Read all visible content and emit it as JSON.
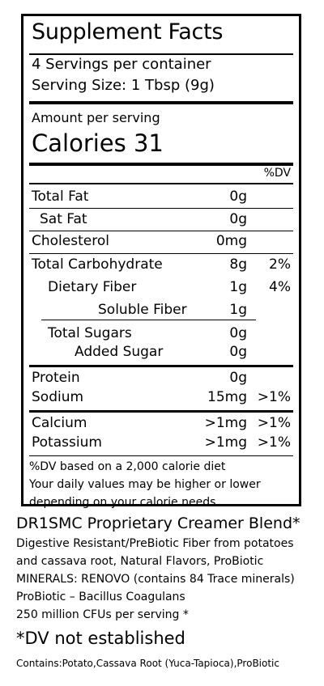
{
  "title": "Supplement Facts",
  "servings_per_container": "4 Servings per container",
  "serving_size": "Serving Size:  1 Tbsp (9g)",
  "amount_per_serving": "Amount per serving",
  "calories": "Calories  31",
  "dv_header": "%DV",
  "nutrients": [
    {
      "label": "Total Fat",
      "value": "0g",
      "dv": ""
    },
    {
      "label": "Sat Fat",
      "value": "0g",
      "dv": ""
    },
    {
      "label": "Cholesterol",
      "value": "0mg",
      "dv": ""
    },
    {
      "label": "Total Carbohydrate",
      "value": "8g",
      "dv": "2%"
    },
    {
      "label": "Dietary Fiber",
      "value": "1g",
      "dv": "4%"
    },
    {
      "label": "Soluble Fiber",
      "value": "1g",
      "dv": ""
    },
    {
      "label": "Total Sugars",
      "value": "0g",
      "dv": ""
    },
    {
      "label": "Added Sugar",
      "value": "0g",
      "dv": ""
    },
    {
      "label": "Protein",
      "value": "0g",
      "dv": ""
    },
    {
      "label": "Sodium",
      "value": "15mg",
      "dv": ">1%"
    },
    {
      "label": "Calcium",
      "value": ">1mg",
      "dv": ">1%"
    },
    {
      "label": "Potassium",
      "value": ">1mg",
      "dv": ">1%"
    }
  ],
  "footnotes": [
    "%DV based on a 2,000 calorie diet",
    "Your daily values may be higher or lower",
    "depending on your calorie needs."
  ],
  "blend_title": "DR1SMC Proprietary Creamer Blend*",
  "ingredients": [
    "Digestive Resistant/PreBiotic Fiber from potatoes",
    "and cassava root, Natural Flavors, ProBiotic",
    "MINERALS: RENOVO  (contains 84 Trace minerals)",
    "ProBiotic – Bacillus Coagulans",
    "250 million CFUs per serving *"
  ],
  "dv_not_established": "*DV not established",
  "contains": "Contains:Potato,Cassava Root (Yuca-Tapioca),ProBiotic"
}
